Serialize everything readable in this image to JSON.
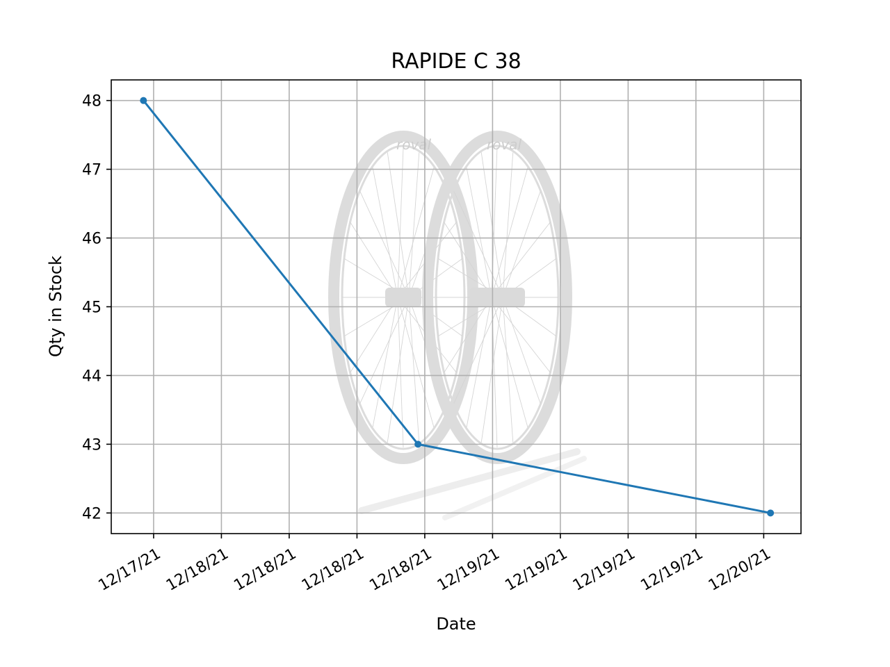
{
  "chart_data": {
    "type": "line",
    "title": "RAPIDE C 38",
    "xlabel": "Date",
    "ylabel": "Qty in Stock",
    "xtick_labels": [
      "12/17/21",
      "12/18/21",
      "12/18/21",
      "12/18/21",
      "12/18/21",
      "12/19/21",
      "12/19/21",
      "12/19/21",
      "12/19/21",
      "12/20/21"
    ],
    "xtick_positions_days": [
      0.0,
      0.4,
      0.8,
      1.2,
      1.6,
      2.0,
      2.4,
      2.8,
      3.2,
      3.6
    ],
    "yticks": [
      42,
      43,
      44,
      45,
      46,
      47,
      48
    ],
    "xlim_days": [
      -0.25,
      3.82
    ],
    "ylim": [
      41.7,
      48.3
    ],
    "grid": true,
    "series": [
      {
        "color": "#1f77b4",
        "points": [
          {
            "x_days": -0.06,
            "y": 48
          },
          {
            "x_days": 1.56,
            "y": 43
          },
          {
            "x_days": 3.64,
            "y": 42
          }
        ]
      }
    ],
    "watermark": {
      "icon": "bicycle-wheels-icon",
      "brand_text": "roval"
    }
  }
}
